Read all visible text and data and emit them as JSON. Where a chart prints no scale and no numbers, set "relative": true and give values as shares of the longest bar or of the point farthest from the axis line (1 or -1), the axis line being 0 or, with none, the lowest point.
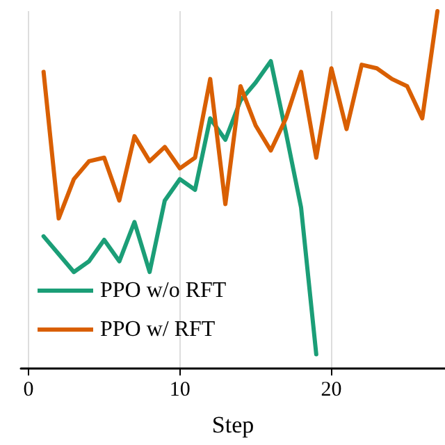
{
  "chart_data": {
    "type": "line",
    "xlabel": "Step",
    "relative": true,
    "xlim": [
      -0.5,
      27.5
    ],
    "xticks": [
      0,
      10,
      20
    ],
    "grid": "x",
    "legend": "bottom left",
    "line_style": "solid",
    "marker": "none",
    "series": [
      {
        "name": "PPO w/o RFT",
        "color": "#1b9e77",
        "x": [
          1,
          2,
          3,
          4,
          5,
          6,
          7,
          8,
          9,
          10,
          11,
          12,
          13,
          14,
          15,
          16,
          17,
          18,
          19
        ],
        "values": [
          0.37,
          0.32,
          0.27,
          0.3,
          0.36,
          0.3,
          0.41,
          0.27,
          0.47,
          0.53,
          0.5,
          0.7,
          0.64,
          0.75,
          0.8,
          0.86,
          0.66,
          0.45,
          0.04
        ]
      },
      {
        "name": "PPO w/ RFT",
        "color": "#d95f02",
        "x": [
          1,
          2,
          3,
          4,
          5,
          6,
          7,
          8,
          9,
          10,
          11,
          12,
          13,
          14,
          15,
          16,
          17,
          18,
          19,
          20,
          21,
          22,
          23,
          24,
          25,
          26,
          27
        ],
        "values": [
          0.83,
          0.42,
          0.53,
          0.58,
          0.59,
          0.47,
          0.65,
          0.58,
          0.62,
          0.56,
          0.59,
          0.81,
          0.46,
          0.79,
          0.68,
          0.61,
          0.7,
          0.83,
          0.59,
          0.84,
          0.67,
          0.85,
          0.84,
          0.81,
          0.79,
          0.7,
          1.0
        ]
      }
    ]
  }
}
